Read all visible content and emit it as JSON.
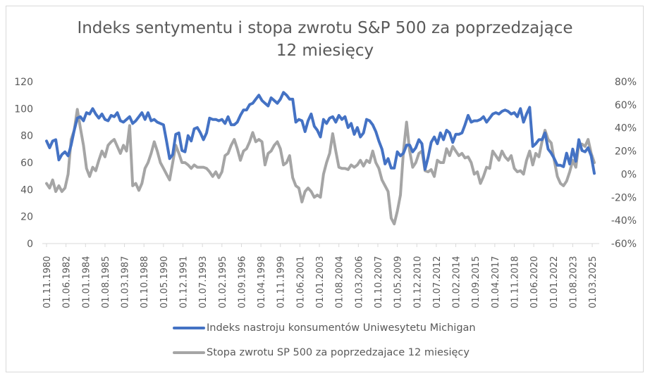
{
  "chart_data": {
    "type": "line",
    "title": "Indeks sentymentu i stopa zwrotu S&P 500 za poprzedzające 12 miesięcy",
    "title_lines": [
      "Indeks sentymentu i stopa zwrotu S&P 500 za poprzedzające",
      "12 miesięcy"
    ],
    "y_left": {
      "min": 0,
      "max": 120,
      "ticks": [
        "0",
        "20",
        "40",
        "60",
        "80",
        "100",
        "120"
      ]
    },
    "y_right": {
      "min": -60,
      "max": 80,
      "unit": "%",
      "ticks": [
        "-60%",
        "-40%",
        "-20%",
        "0%",
        "20%",
        "40%",
        "60%",
        "80%"
      ]
    },
    "x_tick_labels": [
      "01.11.1980",
      "01.06.1982",
      "01.01.1984",
      "01.08.1985",
      "01.03.1987",
      "01.10.1988",
      "01.05.1990",
      "01.12.1991",
      "01.07.1993",
      "01.02.1995",
      "01.09.1996",
      "01.04.1998",
      "01.11.1999",
      "01.06.2001",
      "01.01.2003",
      "01.08.2004",
      "01.03.2006",
      "01.10.2007",
      "01.05.2009",
      "01.12.2010",
      "01.07.2012",
      "01.02.2014",
      "01.09.2015",
      "01.04.2017",
      "01.11.2018",
      "01.06.2020",
      "01.01.2022",
      "01.08.2023",
      "01.03.2025"
    ],
    "x_tick_dates": [
      "1980-11",
      "1982-06",
      "1984-01",
      "1985-08",
      "1987-03",
      "1988-10",
      "1990-05",
      "1991-12",
      "1993-07",
      "1995-02",
      "1996-09",
      "1998-04",
      "1999-11",
      "2001-06",
      "2003-01",
      "2004-08",
      "2006-03",
      "2007-10",
      "2009-05",
      "2010-12",
      "2012-07",
      "2014-02",
      "2015-09",
      "2017-04",
      "2018-11",
      "2020-06",
      "2022-01",
      "2023-08",
      "2025-03"
    ],
    "x": [
      "1980-11",
      "1981-02",
      "1981-05",
      "1981-08",
      "1981-11",
      "1982-02",
      "1982-05",
      "1982-08",
      "1982-11",
      "1983-02",
      "1983-05",
      "1983-08",
      "1983-11",
      "1984-02",
      "1984-05",
      "1984-08",
      "1984-11",
      "1985-02",
      "1985-05",
      "1985-08",
      "1985-11",
      "1986-02",
      "1986-05",
      "1986-08",
      "1986-11",
      "1987-02",
      "1987-05",
      "1987-08",
      "1987-11",
      "1988-02",
      "1988-05",
      "1988-08",
      "1988-11",
      "1989-02",
      "1989-05",
      "1989-08",
      "1989-11",
      "1990-02",
      "1990-05",
      "1990-08",
      "1990-11",
      "1991-02",
      "1991-05",
      "1991-08",
      "1991-11",
      "1992-02",
      "1992-05",
      "1992-08",
      "1992-11",
      "1993-02",
      "1993-05",
      "1993-08",
      "1993-11",
      "1994-02",
      "1994-05",
      "1994-08",
      "1994-11",
      "1995-02",
      "1995-05",
      "1995-08",
      "1995-11",
      "1996-02",
      "1996-05",
      "1996-08",
      "1996-11",
      "1997-02",
      "1997-05",
      "1997-08",
      "1997-11",
      "1998-02",
      "1998-05",
      "1998-08",
      "1998-11",
      "1999-02",
      "1999-05",
      "1999-08",
      "1999-11",
      "2000-02",
      "2000-05",
      "2000-08",
      "2000-11",
      "2001-02",
      "2001-05",
      "2001-08",
      "2001-11",
      "2002-02",
      "2002-05",
      "2002-08",
      "2002-11",
      "2003-02",
      "2003-05",
      "2003-08",
      "2003-11",
      "2004-02",
      "2004-05",
      "2004-08",
      "2004-11",
      "2005-02",
      "2005-05",
      "2005-08",
      "2005-11",
      "2006-02",
      "2006-05",
      "2006-08",
      "2006-11",
      "2007-02",
      "2007-05",
      "2007-08",
      "2007-11",
      "2008-02",
      "2008-05",
      "2008-08",
      "2008-11",
      "2009-02",
      "2009-05",
      "2009-08",
      "2009-11",
      "2010-02",
      "2010-05",
      "2010-08",
      "2010-11",
      "2011-02",
      "2011-05",
      "2011-08",
      "2011-11",
      "2012-02",
      "2012-05",
      "2012-08",
      "2012-11",
      "2013-02",
      "2013-05",
      "2013-08",
      "2013-11",
      "2014-02",
      "2014-05",
      "2014-08",
      "2014-11",
      "2015-02",
      "2015-05",
      "2015-08",
      "2015-11",
      "2016-02",
      "2016-05",
      "2016-08",
      "2016-11",
      "2017-02",
      "2017-05",
      "2017-08",
      "2017-11",
      "2018-02",
      "2018-05",
      "2018-08",
      "2018-11",
      "2019-02",
      "2019-05",
      "2019-08",
      "2019-11",
      "2020-02",
      "2020-05",
      "2020-08",
      "2020-11",
      "2021-02",
      "2021-05",
      "2021-08",
      "2021-11",
      "2022-02",
      "2022-05",
      "2022-08",
      "2022-11",
      "2023-02",
      "2023-05",
      "2023-08",
      "2023-11",
      "2024-02",
      "2024-05",
      "2024-08",
      "2024-11",
      "2025-02",
      "2025-05"
    ],
    "series": [
      {
        "name": "Indeks nastroju konsumentów Uniwesytetu Michigan",
        "axis": "left",
        "color": "#4472c4",
        "values": [
          76,
          71,
          76,
          77,
          62,
          66,
          68,
          65,
          73,
          84,
          93,
          94,
          91,
          97,
          96,
          100,
          96,
          93,
          96,
          92,
          91,
          95,
          94,
          97,
          91,
          90,
          92,
          94,
          89,
          91,
          94,
          97,
          92,
          97,
          91,
          92,
          90,
          89,
          88,
          76,
          63,
          66,
          81,
          82,
          69,
          68,
          80,
          76,
          85,
          86,
          82,
          77,
          82,
          93,
          92,
          92,
          91,
          92,
          89,
          94,
          88,
          88,
          90,
          95,
          99,
          99,
          103,
          104,
          107,
          110,
          106,
          104,
          102,
          108,
          106,
          104,
          107,
          112,
          110,
          107,
          107,
          90,
          92,
          91,
          83,
          91,
          96,
          87,
          84,
          79,
          92,
          89,
          93,
          94,
          90,
          95,
          92,
          94,
          86,
          89,
          81,
          86,
          79,
          82,
          92,
          91,
          88,
          83,
          76,
          70,
          59,
          63,
          56,
          56,
          68,
          65,
          67,
          73,
          73,
          68,
          71,
          77,
          74,
          55,
          64,
          75,
          79,
          74,
          82,
          77,
          84,
          82,
          75,
          81,
          81,
          82,
          88,
          95,
          90,
          91,
          91,
          92,
          94,
          90,
          93,
          96,
          97,
          96,
          98,
          99,
          98,
          96,
          97,
          94,
          100,
          90,
          96,
          101,
          72,
          74,
          77,
          77,
          82,
          70,
          67,
          63,
          58,
          58,
          57,
          67,
          59,
          70,
          61,
          77,
          69,
          68,
          71,
          65,
          52
        ]
      },
      {
        "name": "Stopa zwrotu SP 500 za poprzedzajace 12 miesięcy",
        "axis": "right",
        "color": "#a5a5a5",
        "values": [
          -8,
          -12,
          -5,
          -15,
          -10,
          -15,
          -12,
          0,
          30,
          38,
          56,
          40,
          25,
          5,
          -2,
          6,
          3,
          12,
          20,
          15,
          25,
          28,
          30,
          24,
          18,
          25,
          20,
          42,
          -10,
          -8,
          -14,
          -8,
          5,
          10,
          18,
          28,
          20,
          10,
          5,
          0,
          -5,
          10,
          25,
          18,
          10,
          10,
          8,
          5,
          8,
          6,
          6,
          6,
          5,
          2,
          -2,
          2,
          -3,
          2,
          16,
          18,
          25,
          30,
          22,
          12,
          20,
          22,
          28,
          36,
          28,
          30,
          28,
          8,
          18,
          20,
          25,
          28,
          22,
          8,
          10,
          16,
          -3,
          -10,
          -12,
          -24,
          -15,
          -12,
          -15,
          -20,
          -18,
          -20,
          0,
          10,
          18,
          35,
          20,
          6,
          5,
          5,
          4,
          8,
          6,
          8,
          12,
          7,
          12,
          10,
          20,
          10,
          5,
          -5,
          -10,
          -15,
          -38,
          -43,
          -32,
          -18,
          20,
          45,
          20,
          6,
          10,
          18,
          20,
          3,
          2,
          4,
          -2,
          12,
          10,
          10,
          22,
          16,
          24,
          20,
          16,
          18,
          14,
          15,
          10,
          0,
          2,
          -8,
          -2,
          6,
          5,
          20,
          16,
          12,
          20,
          15,
          12,
          16,
          5,
          2,
          3,
          0,
          12,
          20,
          8,
          18,
          15,
          28,
          38,
          30,
          27,
          12,
          -2,
          -8,
          -10,
          -6,
          2,
          12,
          6,
          26,
          26,
          24,
          30,
          18,
          10
        ]
      }
    ],
    "legend": "bottom",
    "grid": false
  }
}
